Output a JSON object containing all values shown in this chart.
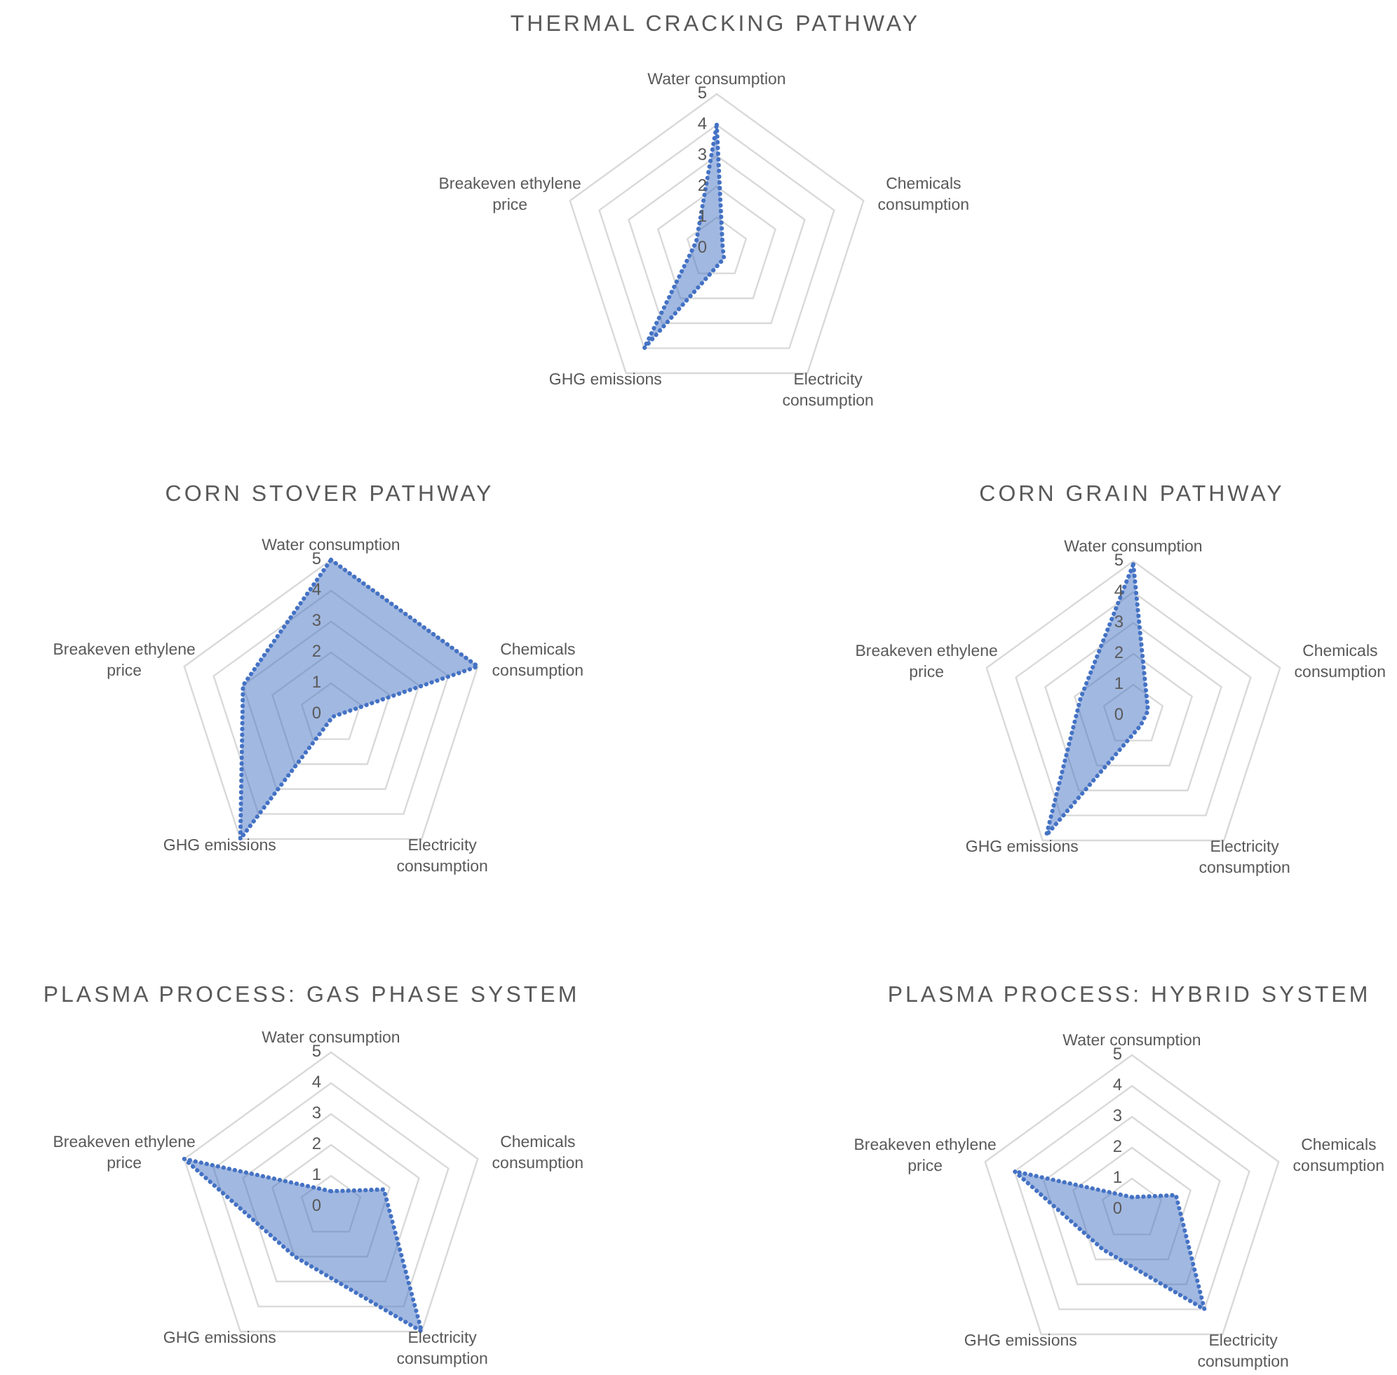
{
  "chart_data": [
    {
      "type": "radar",
      "title": "THERMAL CRACKING PATHWAY",
      "categories": [
        "Water consumption",
        "Chemicals consumption",
        "Electricity consumption",
        "GHG emissions",
        "Breakeven ethylene price"
      ],
      "series": [
        {
          "color": "#4472c4",
          "values": [
            4,
            0.2,
            0.4,
            4,
            0.7
          ]
        }
      ],
      "ylim": [
        0,
        5
      ],
      "yticks": [
        0,
        1,
        2,
        3,
        4,
        5
      ],
      "grid": true,
      "line_style": "dotted"
    },
    {
      "type": "radar",
      "title": "CORN STOVER PATHWAY",
      "categories": [
        "Water consumption",
        "Chemicals consumption",
        "Electricity consumption",
        "GHG emissions",
        "Breakeven ethylene price"
      ],
      "series": [
        {
          "color": "#4472c4",
          "values": [
            5,
            5,
            0.1,
            5,
            3
          ]
        }
      ],
      "ylim": [
        0,
        5
      ],
      "yticks": [
        0,
        1,
        2,
        3,
        4,
        5
      ],
      "grid": true,
      "line_style": "dotted"
    },
    {
      "type": "radar",
      "title": "CORN GRAIN PATHWAY",
      "categories": [
        "Water consumption",
        "Chemicals consumption",
        "Electricity consumption",
        "GHG emissions",
        "Breakeven ethylene price"
      ],
      "series": [
        {
          "color": "#4472c4",
          "values": [
            4.9,
            0.5,
            0.4,
            4.8,
            1.8
          ]
        }
      ],
      "ylim": [
        0,
        5
      ],
      "yticks": [
        0,
        1,
        2,
        3,
        4,
        5
      ],
      "grid": true,
      "line_style": "dotted"
    },
    {
      "type": "radar",
      "title": "PLASMA PROCESS: GAS PHASE SYSTEM",
      "categories": [
        "Water consumption",
        "Chemicals consumption",
        "Electricity consumption",
        "GHG emissions",
        "Breakeven ethylene price"
      ],
      "series": [
        {
          "color": "#4472c4",
          "values": [
            0.5,
            1.8,
            5,
            2,
            5
          ]
        }
      ],
      "ylim": [
        0,
        5
      ],
      "yticks": [
        0,
        1,
        2,
        3,
        4,
        5
      ],
      "grid": true,
      "line_style": "dotted"
    },
    {
      "type": "radar",
      "title": "PLASMA PROCESS: HYBRID SYSTEM",
      "categories": [
        "Water consumption",
        "Chemicals consumption",
        "Electricity consumption",
        "GHG emissions",
        "Breakeven ethylene price"
      ],
      "series": [
        {
          "color": "#4472c4",
          "values": [
            0.4,
            1.5,
            4,
            1.6,
            4
          ]
        }
      ],
      "ylim": [
        0,
        5
      ],
      "yticks": [
        0,
        1,
        2,
        3,
        4,
        5
      ],
      "grid": true,
      "line_style": "dotted"
    }
  ]
}
